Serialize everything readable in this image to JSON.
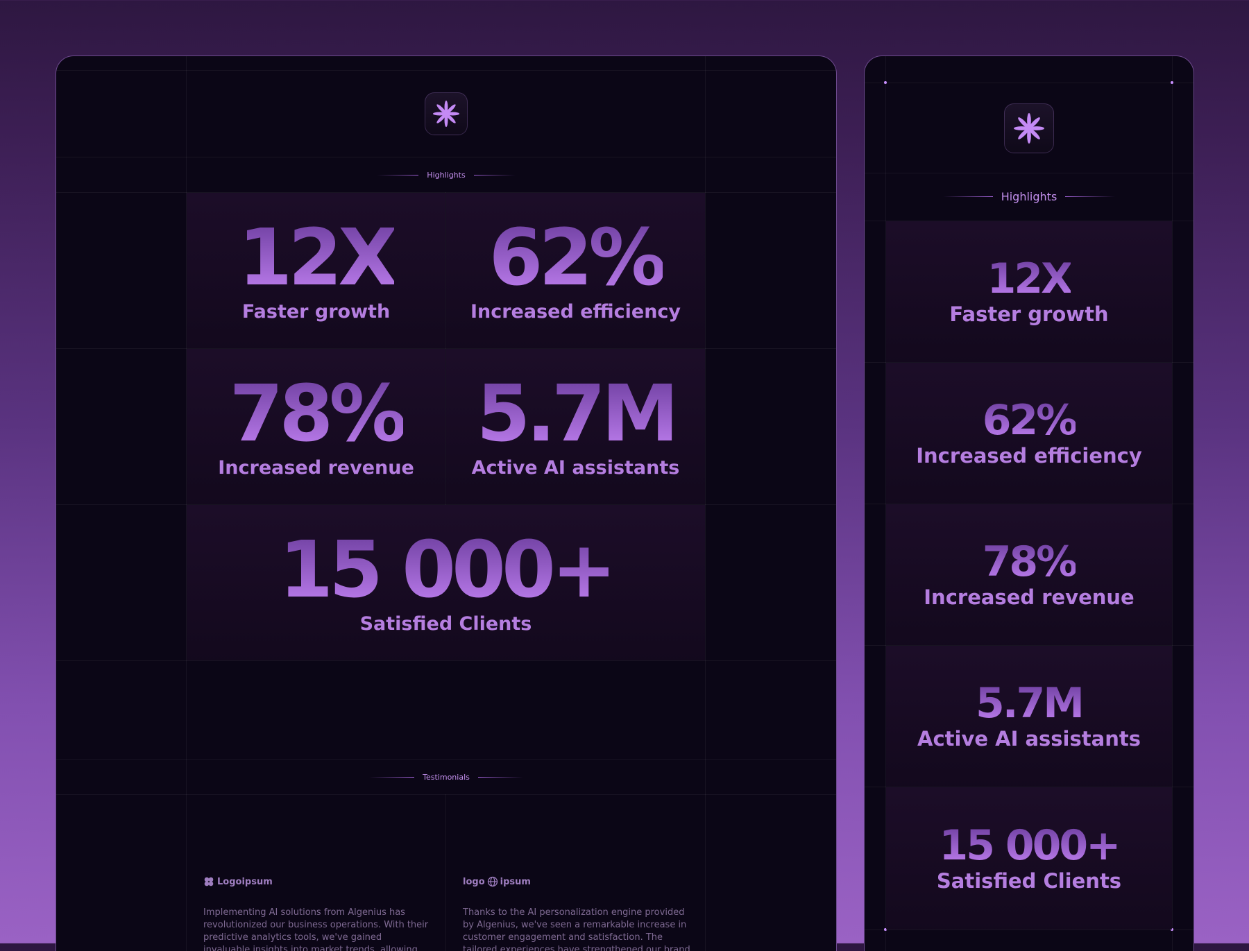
{
  "desktop": {
    "highlights_label": "Highlights",
    "stats": [
      {
        "value": "12X",
        "label": "Faster growth"
      },
      {
        "value": "62%",
        "label": "Increased efficiency"
      },
      {
        "value": "78%",
        "label": "Increased revenue"
      },
      {
        "value": "5.7M",
        "label": "Active AI assistants"
      },
      {
        "value": "15 000+",
        "label": "Satisfied Clients"
      }
    ],
    "testimonials_label": "Testimonials",
    "testimonials": [
      {
        "brand": "Logoipsum",
        "text": "Implementing AI solutions from Algenius has revolutionized our business operations. With their predictive analytics tools, we've gained invaluable insights into market trends, allowing us to make strategic decisions with confidence. Our efficiency has skyrocketed, and we're thrilled with the results!"
      },
      {
        "brand_left": "logo",
        "brand_right": "ipsum",
        "text": "Thanks to the AI personalization engine provided by Algenius, we've seen a remarkable increase in customer engagement and satisfaction. The tailored experiences have strengthened our brand loyalty and driven significant revenue growth. Highly recommended!"
      }
    ]
  },
  "mobile": {
    "highlights_label": "Highlights",
    "stats": [
      {
        "value": "12X",
        "label": "Faster growth"
      },
      {
        "value": "62%",
        "label": "Increased efficiency"
      },
      {
        "value": "78%",
        "label": "Increased revenue"
      },
      {
        "value": "5.7M",
        "label": "Active AI assistants"
      },
      {
        "value": "15 000+",
        "label": "Satisfied Clients"
      }
    ]
  },
  "colors": {
    "accent": "#b57ee0",
    "panel": "#0b0616"
  }
}
